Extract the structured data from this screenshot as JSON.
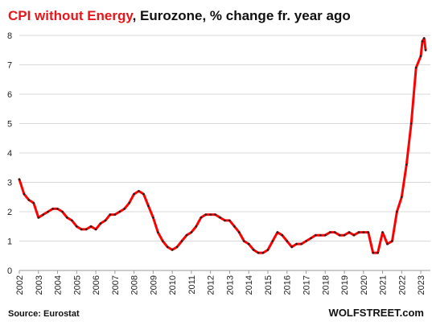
{
  "chart_data": {
    "type": "line",
    "title_highlight": "CPI without Energy",
    "title_rest": ", Eurozone,  % change fr. year ago",
    "xlabel": "",
    "ylabel": "",
    "ylim": [
      0,
      8
    ],
    "yticks": [
      "0",
      "1",
      "2",
      "3",
      "4",
      "5",
      "6",
      "7",
      "8"
    ],
    "xtick_labels": [
      "2002",
      "2003",
      "2004",
      "2005",
      "2006",
      "2007",
      "2008",
      "2009",
      "2010",
      "2011",
      "2012",
      "2013",
      "2014",
      "2015",
      "2016",
      "2017",
      "2018",
      "2019",
      "2020",
      "2021",
      "2022",
      "2023"
    ],
    "grid": true,
    "line_color": "#ff0000",
    "marker_color": "#222222",
    "source": "Source: Eurostat",
    "brand": "WOLFSTREET.com",
    "series": [
      {
        "x": [
          2002.0,
          2002.25,
          2002.5,
          2002.75,
          2003.0,
          2003.25,
          2003.5,
          2003.75,
          2004.0,
          2004.25,
          2004.5,
          2004.75,
          2005.0,
          2005.25,
          2005.5,
          2005.75,
          2006.0,
          2006.25,
          2006.5,
          2006.75,
          2007.0,
          2007.25,
          2007.5,
          2007.75,
          2008.0,
          2008.25,
          2008.5,
          2008.75,
          2009.0,
          2009.25,
          2009.5,
          2009.75,
          2010.0,
          2010.25,
          2010.5,
          2010.75,
          2011.0,
          2011.25,
          2011.5,
          2011.75,
          2012.0,
          2012.25,
          2012.5,
          2012.75,
          2013.0,
          2013.25,
          2013.5,
          2013.75,
          2014.0,
          2014.25,
          2014.5,
          2014.75,
          2015.0,
          2015.25,
          2015.5,
          2015.75,
          2016.0,
          2016.25,
          2016.5,
          2016.75,
          2017.0,
          2017.25,
          2017.5,
          2017.75,
          2018.0,
          2018.25,
          2018.5,
          2018.75,
          2019.0,
          2019.25,
          2019.5,
          2019.75,
          2020.0,
          2020.25,
          2020.5,
          2020.75,
          2021.0,
          2021.25,
          2021.5,
          2021.75,
          2022.0,
          2022.25,
          2022.5,
          2022.75,
          2023.0,
          2023.08,
          2023.17,
          2023.25
        ],
        "values": [
          3.1,
          2.6,
          2.4,
          2.3,
          1.8,
          1.9,
          2.0,
          2.1,
          2.1,
          2.0,
          1.8,
          1.7,
          1.5,
          1.4,
          1.4,
          1.5,
          1.4,
          1.6,
          1.7,
          1.9,
          1.9,
          2.0,
          2.1,
          2.3,
          2.6,
          2.7,
          2.6,
          2.2,
          1.8,
          1.3,
          1.0,
          0.8,
          0.7,
          0.8,
          1.0,
          1.2,
          1.3,
          1.5,
          1.8,
          1.9,
          1.9,
          1.9,
          1.8,
          1.7,
          1.7,
          1.5,
          1.3,
          1.0,
          0.9,
          0.7,
          0.6,
          0.6,
          0.7,
          1.0,
          1.3,
          1.2,
          1.0,
          0.8,
          0.9,
          0.9,
          1.0,
          1.1,
          1.2,
          1.2,
          1.2,
          1.3,
          1.3,
          1.2,
          1.2,
          1.3,
          1.2,
          1.3,
          1.3,
          1.3,
          0.6,
          0.6,
          1.3,
          0.9,
          1.0,
          2.0,
          2.5,
          3.6,
          5.0,
          6.9,
          7.3,
          7.8,
          7.9,
          7.5
        ]
      }
    ]
  }
}
